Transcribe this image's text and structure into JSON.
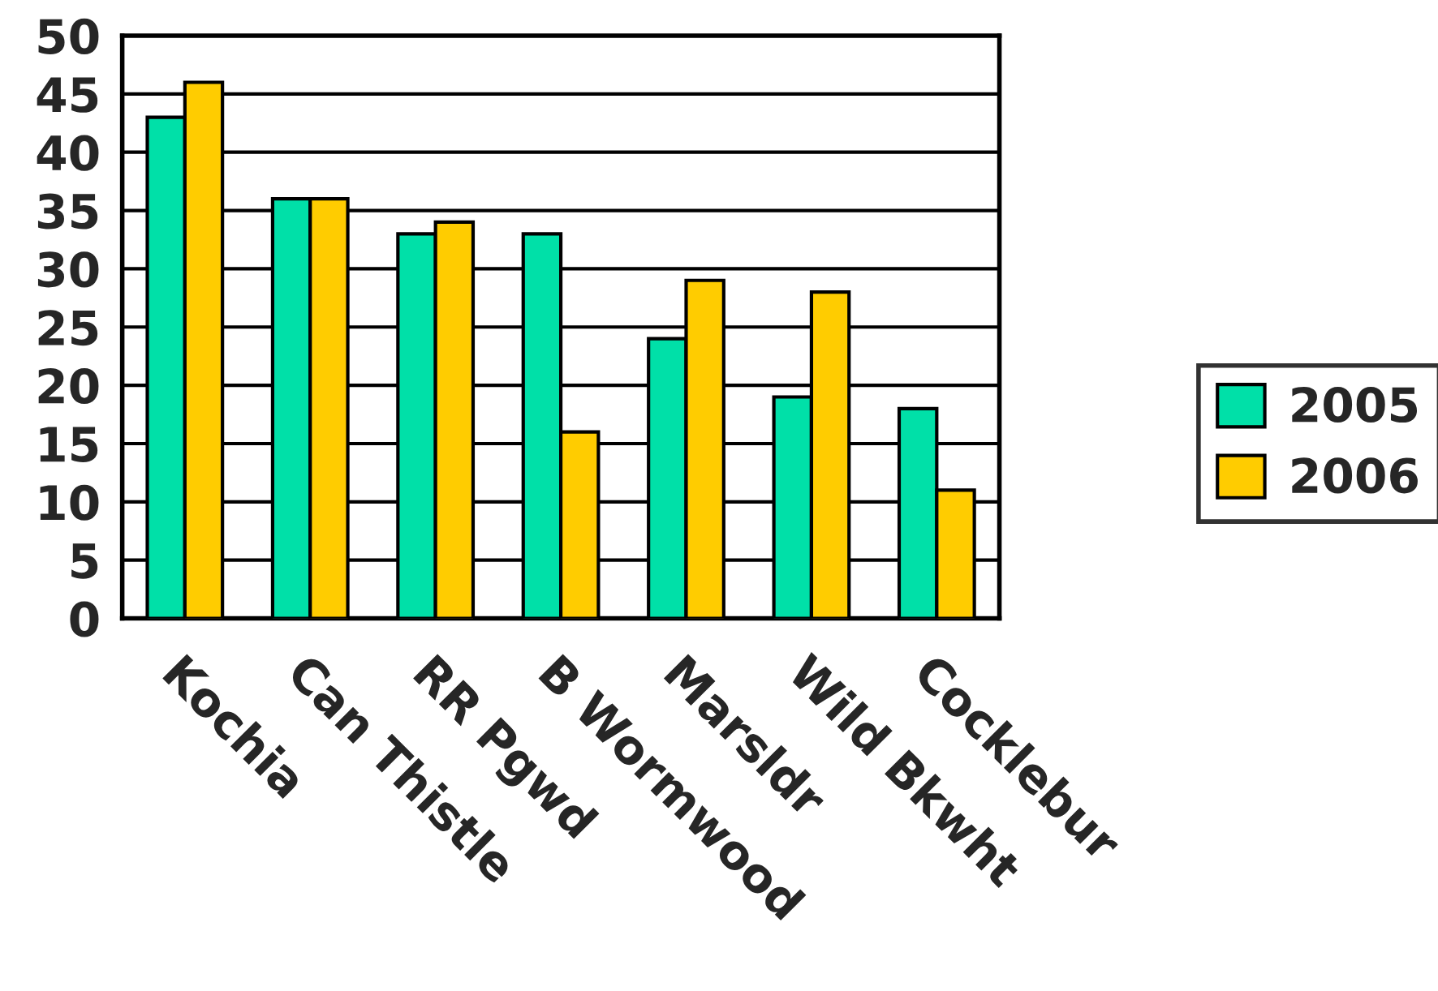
{
  "chart_data": {
    "type": "bar",
    "categories": [
      "Kochia",
      "Can Thistle",
      "RR Pgwd",
      "B Wormwood",
      "Marsldr",
      "Wild Bkwht",
      "Cocklebur"
    ],
    "series": [
      {
        "name": "2005",
        "color": "#00e0a8",
        "values": [
          43,
          36,
          33,
          33,
          24,
          19,
          18
        ]
      },
      {
        "name": "2006",
        "color": "#ffcc00",
        "values": [
          46,
          36,
          34,
          16,
          29,
          28,
          11
        ]
      }
    ],
    "ylim": [
      0,
      50
    ],
    "yticks": [
      0,
      5,
      10,
      15,
      20,
      25,
      30,
      35,
      40,
      45,
      50
    ],
    "grid": "y",
    "legend": "right"
  }
}
